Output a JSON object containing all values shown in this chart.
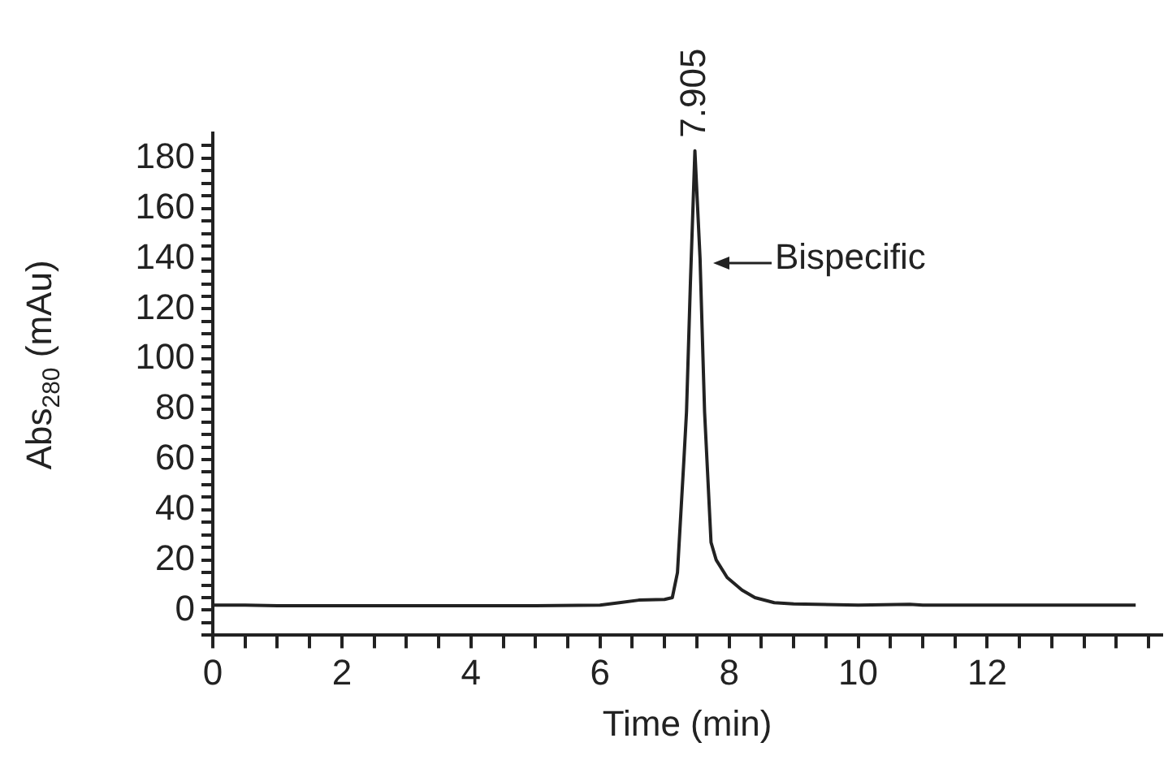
{
  "chart_data": {
    "type": "line",
    "xlabel": "Time (min)",
    "ylabel": "Abs$_{280}$ (mAu)",
    "x": [
      0,
      0.5,
      1,
      3,
      5,
      6,
      6.3,
      6.6,
      7,
      7.12,
      7.2,
      7.3,
      7.34,
      7.4,
      7.47,
      7.55,
      7.62,
      7.72,
      7.8,
      7.97,
      8.2,
      8.4,
      8.7,
      9,
      10,
      10.8,
      11,
      12,
      13,
      14.3
    ],
    "series": [
      {
        "color": "#222222",
        "values": [
          2,
          2,
          1.8,
          1.8,
          1.8,
          2,
          3,
          4,
          4.3,
          5,
          15,
          60,
          79,
          130,
          183,
          140,
          79,
          27,
          20,
          13,
          8,
          5,
          3,
          2.5,
          2,
          2.3,
          2,
          2,
          2,
          2
        ]
      }
    ],
    "xlim": [
      0,
      14.7
    ],
    "xticks": [
      0,
      {
        "value": 0.5,
        "label": null
      },
      2,
      {
        "value": 1,
        "label": null
      },
      {
        "value": 1.5,
        "label": null
      },
      {
        "value": 2.5,
        "label": null
      },
      {
        "value": 3,
        "label": null
      },
      {
        "value": 3.5,
        "label": null
      },
      4,
      {
        "value": 4.5,
        "label": null
      },
      {
        "value": 5,
        "label": null
      },
      {
        "value": 5.5,
        "label": null
      },
      6,
      {
        "value": 6.5,
        "label": null
      },
      {
        "value": 7,
        "label": null
      },
      {
        "value": 7.5,
        "label": null
      },
      8,
      {
        "value": 8.5,
        "label": null
      },
      {
        "value": 9,
        "label": null
      },
      {
        "value": 9.5,
        "label": null
      },
      10,
      {
        "value": 10.5,
        "label": null
      },
      {
        "value": 11,
        "label": null
      },
      {
        "value": 11.5,
        "label": null
      },
      12,
      {
        "value": 12.5,
        "label": null
      },
      {
        "value": 13,
        "label": null
      },
      {
        "value": 13.5,
        "label": null
      },
      {
        "value": 14,
        "label": null
      },
      {
        "value": 14.5,
        "label": null
      }
    ],
    "ylim": [
      -10,
      190
    ],
    "yticks": [
      {
        "value": -10,
        "label": null
      },
      {
        "value": -5,
        "label": null
      },
      0,
      {
        "value": 5,
        "label": null
      },
      {
        "value": 10,
        "label": null
      },
      {
        "value": 15,
        "label": null
      },
      20,
      {
        "value": 25,
        "label": null
      },
      {
        "value": 30,
        "label": null
      },
      {
        "value": 35,
        "label": null
      },
      40,
      {
        "value": 45,
        "label": null
      },
      {
        "value": 50,
        "label": null
      },
      {
        "value": 55,
        "label": null
      },
      60,
      {
        "value": 65,
        "label": null
      },
      {
        "value": 70,
        "label": null
      },
      {
        "value": 75,
        "label": null
      },
      80,
      {
        "value": 85,
        "label": null
      },
      {
        "value": 90,
        "label": null
      },
      {
        "value": 95,
        "label": null
      },
      100,
      {
        "value": 105,
        "label": null
      },
      {
        "value": 110,
        "label": null
      },
      {
        "value": 115,
        "label": null
      },
      120,
      {
        "value": 125,
        "label": null
      },
      {
        "value": 130,
        "label": null
      },
      {
        "value": 135,
        "label": null
      },
      140,
      {
        "value": 145,
        "label": null
      },
      {
        "value": 150,
        "label": null
      },
      {
        "value": 155,
        "label": null
      },
      160,
      {
        "value": 165,
        "label": null
      },
      {
        "value": 170,
        "label": null
      },
      {
        "value": 175,
        "label": null
      },
      180,
      {
        "value": 185,
        "label": null
      }
    ],
    "annotations": [
      {
        "text": "7.905",
        "x": 7.47,
        "y": 183
      },
      {
        "text": "Bispecific",
        "x": 7.55,
        "y": 140
      }
    ],
    "grid": false,
    "legend": false,
    "marker": "none",
    "line_style": "solid"
  }
}
